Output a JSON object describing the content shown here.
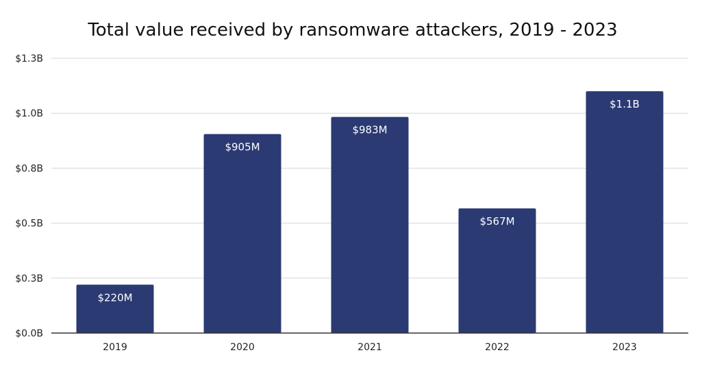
{
  "chart_data": {
    "type": "bar",
    "title": "Total value received by ransomware attackers, 2019 - 2023",
    "xlabel": "",
    "ylabel": "",
    "categories": [
      "2019",
      "2020",
      "2021",
      "2022",
      "2023"
    ],
    "values": [
      0.22,
      0.905,
      0.983,
      0.567,
      1.1
    ],
    "value_labels": [
      "$220M",
      "$905M",
      "$983M",
      "$567M",
      "$1.1B"
    ],
    "y_ticks": [
      0,
      0.25,
      0.5,
      0.75,
      1.0,
      1.25
    ],
    "y_tick_labels": [
      "$0.0B",
      "$0.3B",
      "$0.5B",
      "$0.8B",
      "$1.0B",
      "$1.3B"
    ],
    "ylim": [
      0,
      1.25
    ],
    "grid": true,
    "legend": "none",
    "bar_color": "#2b3a73",
    "grid_color": "#d6d6d6",
    "axis_color": "#333333"
  }
}
